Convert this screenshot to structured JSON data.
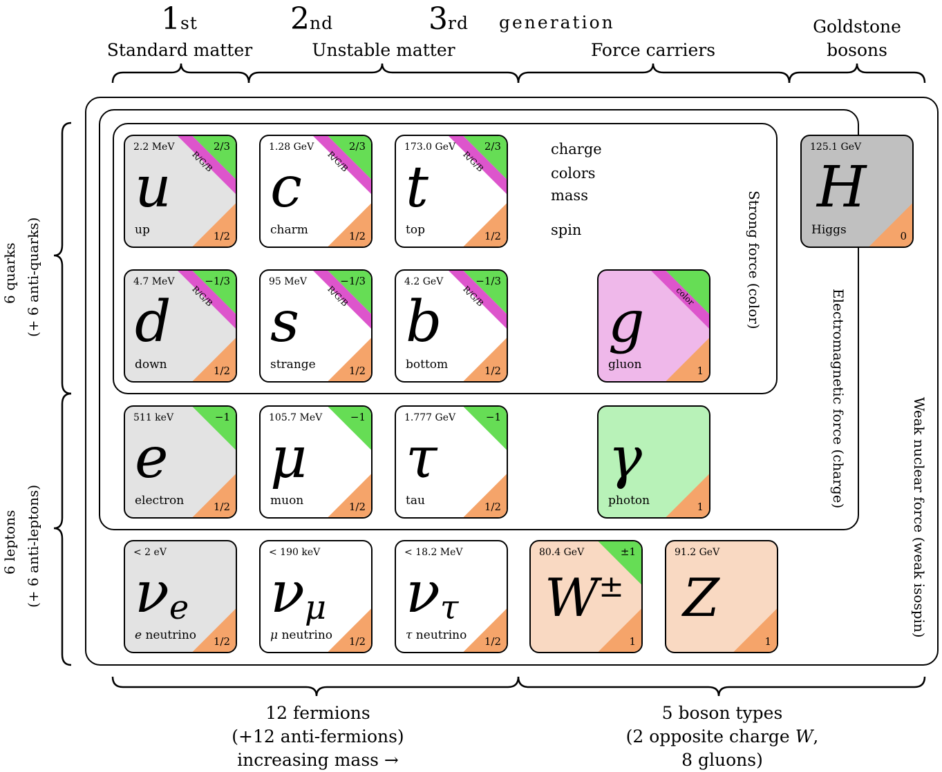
{
  "header": {
    "gen1_num": "1",
    "gen1_sup": "st",
    "gen2_num": "2",
    "gen2_sup": "nd",
    "gen3_num": "3",
    "gen3_sup": "rd",
    "generation": "generation",
    "standard_matter": "Standard matter",
    "unstable_matter": "Unstable matter",
    "force_carriers": "Force carriers",
    "goldstone_1": "Goldstone",
    "goldstone_2": "bosons"
  },
  "side": {
    "quarks_1": "6 quarks",
    "quarks_2": "(+ 6 anti-quarks)",
    "leptons_1": "6 leptons",
    "leptons_2": "(+ 6 anti-leptons)"
  },
  "forces": {
    "strong": "Strong force (color)",
    "em": "Electromagnetic force (charge)",
    "weak": "Weak nuclear force (weak isospin)"
  },
  "annotations": {
    "charge": "charge",
    "colors": "colors",
    "mass": "mass",
    "spin": "spin"
  },
  "footer": {
    "fermions_1": "12 fermions",
    "fermions_2": "(+12 anti-fermions)",
    "fermions_3": "increasing mass →",
    "bosons_1": "5 boson types",
    "bosons_2": "(2 opposite charge ",
    "bosons_2_w": "W",
    "bosons_2_end": ",",
    "bosons_3": "8 gluons)"
  },
  "particles": {
    "up": {
      "mass": "2.2 MeV",
      "charge": "2/3",
      "colors": "R/G/B",
      "spin": "1/2",
      "symbol": "u",
      "name": "up"
    },
    "charm": {
      "mass": "1.28 GeV",
      "charge": "2/3",
      "colors": "R/G/B",
      "spin": "1/2",
      "symbol": "c",
      "name": "charm"
    },
    "top": {
      "mass": "173.0 GeV",
      "charge": "2/3",
      "colors": "R/G/B",
      "spin": "1/2",
      "symbol": "t",
      "name": "top"
    },
    "down": {
      "mass": "4.7 MeV",
      "charge": "−1/3",
      "colors": "R/G/B",
      "spin": "1/2",
      "symbol": "d",
      "name": "down"
    },
    "strange": {
      "mass": "95 MeV",
      "charge": "−1/3",
      "colors": "R/G/B",
      "spin": "1/2",
      "symbol": "s",
      "name": "strange"
    },
    "bottom": {
      "mass": "4.2 GeV",
      "charge": "−1/3",
      "colors": "R/G/B",
      "spin": "1/2",
      "symbol": "b",
      "name": "bottom"
    },
    "gluon": {
      "colors": "color",
      "spin": "1",
      "symbol": "g",
      "name": "gluon"
    },
    "electron": {
      "mass": "511 keV",
      "charge": "−1",
      "spin": "1/2",
      "symbol": "e",
      "name": "electron"
    },
    "muon": {
      "mass": "105.7 MeV",
      "charge": "−1",
      "spin": "1/2",
      "symbol": "μ",
      "name": "muon"
    },
    "tau": {
      "mass": "1.777 GeV",
      "charge": "−1",
      "spin": "1/2",
      "symbol": "τ",
      "name": "tau"
    },
    "photon": {
      "spin": "1",
      "symbol": "γ",
      "name": "photon"
    },
    "nu_e": {
      "mass": "< 2 eV",
      "spin": "1/2",
      "symbol": "ν",
      "sub": "e",
      "name_prefix": "e",
      "name": " neutrino"
    },
    "nu_mu": {
      "mass": "< 190 keV",
      "spin": "1/2",
      "symbol": "ν",
      "sub": "μ",
      "name_prefix": "μ",
      "name": " neutrino"
    },
    "nu_tau": {
      "mass": "< 18.2 MeV",
      "spin": "1/2",
      "symbol": "ν",
      "sub": "τ",
      "name_prefix": "τ",
      "name": " neutrino"
    },
    "w": {
      "mass": "80.4 GeV",
      "charge": "±1",
      "spin": "1",
      "symbol": "W",
      "sup": "±"
    },
    "z": {
      "mass": "91.2 GeV",
      "spin": "1",
      "symbol": "Z"
    },
    "higgs": {
      "mass": "125.1 GeV",
      "spin": "0",
      "symbol": "H",
      "name": "Higgs"
    }
  },
  "colors": {
    "quark_gray": "#e3e3e3",
    "white": "#ffffff",
    "gluon_pink": "#efb8ea",
    "photon_green": "#b8f2b8",
    "boson_peach": "#f9d9c2",
    "higgs_gray": "#c0c0c0",
    "charge_green": "#66dd55",
    "color_magenta": "#dd55cc",
    "spin_orange": "#f5a46a"
  }
}
